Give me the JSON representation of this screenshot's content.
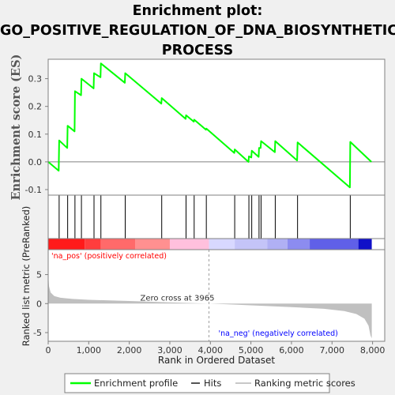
{
  "chart_data": {
    "type": "line",
    "title_lines": [
      "Enrichment plot:",
      "GO_POSITIVE_REGULATION_OF_DNA_BIOSYNTHETIC_",
      "PROCESS"
    ],
    "ylabel_top": "Enrichment score (ES)",
    "ylabel_bottom": "Ranked list metric (PreRanked)",
    "xlabel": "Rank in Ordered Dataset",
    "colors": {
      "es_line": "#00ff00",
      "hits": "#000000",
      "metric_fill": "#c0c0c0",
      "pos_label": "#ff0000",
      "neg_label": "#0000ff"
    },
    "es_ylim": [
      -0.12,
      0.37
    ],
    "es_yticks": [
      -0.1,
      0.0,
      0.1,
      0.2,
      0.3
    ],
    "es_ytick_labels": [
      "-0.1",
      "0.0",
      "0.1",
      "0.2",
      "0.3"
    ],
    "metric_ylim": [
      -6.5,
      9.3
    ],
    "metric_yticks": [
      -5,
      0,
      5
    ],
    "metric_ytick_labels": [
      "-5",
      "0",
      "5"
    ],
    "xlim": [
      0,
      8300
    ],
    "xticks": [
      0,
      1000,
      2000,
      3000,
      4000,
      5000,
      6000,
      7000,
      8000
    ],
    "xtick_labels": [
      "0",
      "1,000",
      "2,000",
      "3,000",
      "4,000",
      "5,000",
      "6,000",
      "7,000",
      "8,000"
    ],
    "dataset_size": 7980,
    "hits": [
      270,
      480,
      660,
      820,
      1130,
      1300,
      1900,
      2800,
      3400,
      3600,
      3900,
      4600,
      4950,
      5020,
      5200,
      5250,
      5600,
      6150,
      7450
    ],
    "es_profile": {
      "x": [
        0,
        260,
        270,
        470,
        480,
        650,
        660,
        810,
        820,
        1120,
        1130,
        1290,
        1300,
        1890,
        1900,
        2790,
        2800,
        3390,
        3400,
        3590,
        3600,
        3890,
        3900,
        4590,
        4600,
        4940,
        4950,
        5010,
        5020,
        5190,
        5200,
        5240,
        5250,
        5590,
        5600,
        6140,
        6150,
        7440,
        7450,
        7970
      ],
      "y": [
        0.0,
        -0.032,
        0.077,
        0.05,
        0.13,
        0.11,
        0.255,
        0.24,
        0.3,
        0.265,
        0.32,
        0.305,
        0.355,
        0.285,
        0.32,
        0.21,
        0.23,
        0.155,
        0.168,
        0.145,
        0.152,
        0.116,
        0.12,
        0.032,
        0.045,
        0.0,
        0.02,
        0.016,
        0.04,
        0.018,
        0.05,
        0.05,
        0.075,
        0.035,
        0.075,
        0.005,
        0.07,
        -0.092,
        0.072,
        0.0
      ]
    },
    "metric_profile": {
      "x": [
        0,
        20,
        60,
        150,
        300,
        600,
        1000,
        2000,
        3000,
        3965,
        4500,
        5000,
        6000,
        6800,
        7300,
        7600,
        7800,
        7900,
        7950,
        7980
      ],
      "y": [
        5.3,
        3.0,
        1.9,
        1.3,
        1.0,
        0.8,
        0.65,
        0.45,
        0.22,
        0.0,
        -0.15,
        -0.3,
        -0.6,
        -0.9,
        -1.3,
        -1.8,
        -2.6,
        -3.8,
        -5.5,
        -6.0
      ]
    },
    "zero_cross_label": "Zero cross at 3965",
    "zero_cross": 3965,
    "pos_label": "'na_pos' (positively correlated)",
    "neg_label": "'na_neg' (negatively correlated)",
    "color_bar": [
      {
        "from": 0,
        "to": 900,
        "color": "#ff1a1a"
      },
      {
        "from": 900,
        "to": 1300,
        "color": "#ff3d3d"
      },
      {
        "from": 1300,
        "to": 2150,
        "color": "#ff6a6a"
      },
      {
        "from": 2150,
        "to": 3000,
        "color": "#ff9090"
      },
      {
        "from": 3000,
        "to": 3965,
        "color": "#ffc0dd"
      },
      {
        "from": 3965,
        "to": 4600,
        "color": "#d8d8ff"
      },
      {
        "from": 4600,
        "to": 5400,
        "color": "#c4c4f8"
      },
      {
        "from": 5400,
        "to": 5900,
        "color": "#b0b0f4"
      },
      {
        "from": 5900,
        "to": 6450,
        "color": "#8c8cf0"
      },
      {
        "from": 6450,
        "to": 7650,
        "color": "#6060e8"
      },
      {
        "from": 7650,
        "to": 7980,
        "color": "#1010c8"
      }
    ],
    "legend": [
      {
        "label": "Enrichment profile",
        "color": "#00ff00",
        "kind": "line"
      },
      {
        "label": "Hits",
        "color": "#555555",
        "kind": "tick"
      },
      {
        "label": "Ranking metric scores",
        "color": "#c8c8c8",
        "kind": "band"
      }
    ]
  }
}
